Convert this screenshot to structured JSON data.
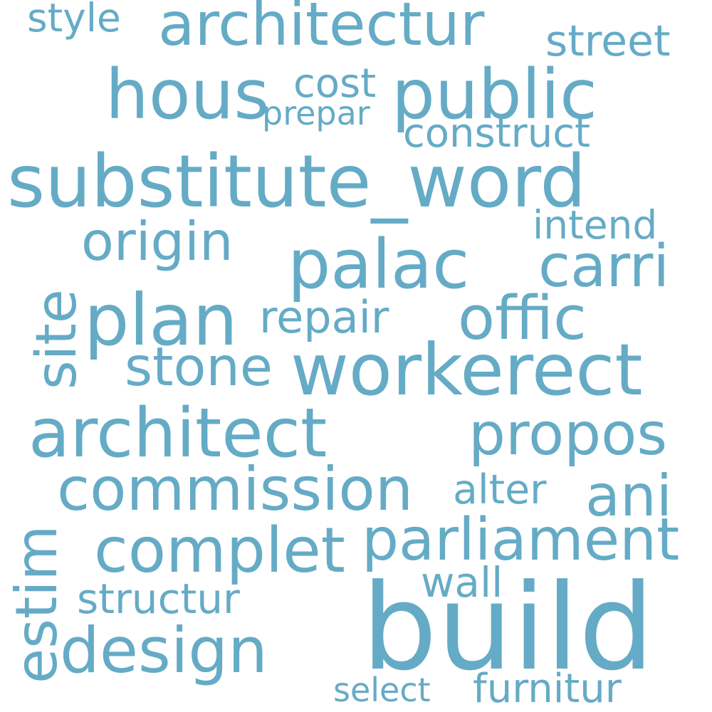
{
  "colors": {
    "background": "#ffffff",
    "word": "#65abc6"
  },
  "words": {
    "style": "style",
    "architectur": "architectur",
    "street": "street",
    "hous": "hous",
    "cost": "cost",
    "prepar": "prepar",
    "public": "public",
    "construct": "construct",
    "substitute_word": "substitute_word",
    "intend": "intend",
    "origin": "origin",
    "palac": "palac",
    "carri": "carri",
    "site": "site",
    "plan": "plan",
    "repair": "repair",
    "offic": "offic",
    "stone": "stone",
    "workerect": "workerect",
    "architect": "architect",
    "propos": "propos",
    "commission": "commission",
    "alter": "alter",
    "ani": "ani",
    "complet": "complet",
    "parliament": "parliament",
    "estim": "estim",
    "structur": "structur",
    "wall": "wall",
    "build": "build",
    "design": "design",
    "select": "select",
    "furnitur": "furnitur"
  }
}
